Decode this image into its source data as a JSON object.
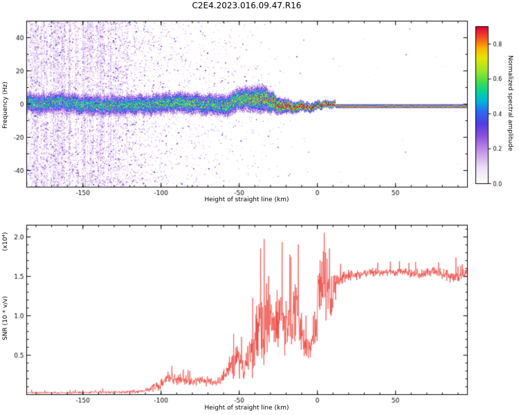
{
  "title": "C2E4.2023.016.09.47.R16",
  "layout_labels": {
    "top_xlabel": "Height of straight line (km)",
    "bottom_xlabel": "Height of straight line (km)",
    "top_ylabel": "Frequency (Hz)",
    "bottom_ylabel": "SNR (10 * v/v)",
    "bottom_y_scale": "(x10⁴)",
    "colorbar_label": "Normalized spectral amplitude"
  },
  "top_panel": {
    "x_range": [
      -186,
      96
    ],
    "y_range": [
      -50,
      50
    ],
    "x_ticks": [
      -150,
      -100,
      -50,
      0,
      50
    ],
    "x_tick_labels": [
      "-150",
      "-100",
      "-50",
      "0",
      "50"
    ],
    "x_minor_step": 10,
    "y_ticks": [
      -40,
      -20,
      0,
      20,
      40
    ],
    "y_tick_labels": [
      "-40",
      "-20",
      "0",
      "20",
      "40"
    ],
    "y_minor_step": 10
  },
  "bottom_panel": {
    "x_range": [
      -186,
      96
    ],
    "y_range": [
      0,
      2.15
    ],
    "x_ticks": [
      -150,
      -100,
      -50,
      0,
      50
    ],
    "x_tick_labels": [
      "-150",
      "-100",
      "-50",
      "0",
      "50"
    ],
    "x_minor_step": 10,
    "y_ticks": [
      0.5,
      1.0,
      1.5,
      2.0
    ],
    "y_tick_labels": [
      "0.5",
      "1.0",
      "1.5",
      "2.0"
    ],
    "y_minor_step": 0.1,
    "line_color": "#ee3b33"
  },
  "colorbar": {
    "range": [
      0,
      0.9
    ],
    "ticks": [
      0,
      0.2,
      0.4,
      0.6,
      0.8
    ],
    "tick_labels": [
      "0.0",
      "0.2",
      "0.4",
      "0.6",
      "0.8"
    ],
    "stops": [
      [
        0.0,
        "#ffffff"
      ],
      [
        0.1,
        "#eddef7"
      ],
      [
        0.2,
        "#c496e8"
      ],
      [
        0.3,
        "#8c50dc"
      ],
      [
        0.38,
        "#503ce6"
      ],
      [
        0.46,
        "#286ef0"
      ],
      [
        0.52,
        "#00b4dc"
      ],
      [
        0.58,
        "#00d2a0"
      ],
      [
        0.64,
        "#3cdc50"
      ],
      [
        0.72,
        "#a0e628"
      ],
      [
        0.8,
        "#e6e600"
      ],
      [
        0.86,
        "#fab400"
      ],
      [
        0.92,
        "#fa5a1e"
      ],
      [
        1.0,
        "#dc003c"
      ]
    ]
  },
  "chart_data": [
    {
      "type": "heatmap",
      "title": "C2E4.2023.016.09.47.R16",
      "xlabel": "Height of straight line (km)",
      "ylabel": "Frequency (Hz)",
      "colorbar_label": "Normalized spectral amplitude",
      "description": "Radio-occultation echo spectrogram: dense lavender speckle noise with vertical streaks below -130 km, a speckled blue/cyan echo band near 0 Hz that wanders slightly, intensifies to yellow/red between -30 and 10 km, and becomes a thin straight multicolour (red-core) line at -1.5 Hz above ~12 km",
      "centerline": {
        "km": [
          -185,
          -175,
          -165,
          -155,
          -145,
          -135,
          -125,
          -115,
          -105,
          -95,
          -85,
          -75,
          -65,
          -55,
          -45,
          -35,
          -25,
          -15,
          -5,
          5,
          15,
          25,
          35,
          45,
          55,
          65,
          75,
          85,
          95
        ],
        "freq_hz": [
          0.5,
          -0.5,
          0.5,
          0,
          -0.5,
          0,
          0.5,
          0,
          -0.5,
          0,
          0.5,
          0,
          -0.5,
          0.5,
          1.5,
          4,
          -1,
          -2,
          -1.5,
          -1.5,
          -1.5,
          -1.5,
          -1.5,
          -1.5,
          -1.5,
          -1.5,
          -1.5,
          -1.5,
          -1.5
        ],
        "peak_amplitude": [
          0.55,
          0.55,
          0.55,
          0.55,
          0.55,
          0.55,
          0.55,
          0.55,
          0.58,
          0.58,
          0.6,
          0.6,
          0.6,
          0.62,
          0.68,
          0.72,
          0.85,
          0.9,
          0.95,
          1,
          1,
          1,
          1,
          1,
          1,
          1,
          1,
          1,
          1
        ],
        "sigma_hz": [
          4,
          4,
          4,
          4,
          4,
          4,
          4,
          4,
          4,
          4,
          4,
          4,
          4,
          4.2,
          4.5,
          5,
          3,
          2,
          1.6,
          1.3,
          1.2,
          1.2,
          1.2,
          1.2,
          1.2,
          1.2,
          1.2,
          1.2,
          1.2
        ]
      },
      "noise_density": [
        [
          -186,
          0.5
        ],
        [
          -150,
          0.48
        ],
        [
          -135,
          0.4
        ],
        [
          -128,
          0.3
        ],
        [
          -120,
          0.17
        ],
        [
          -110,
          0.1
        ],
        [
          -100,
          0.07
        ],
        [
          -90,
          0.05
        ],
        [
          -80,
          0.038
        ],
        [
          -70,
          0.03
        ],
        [
          -60,
          0.024
        ],
        [
          -50,
          0.02
        ],
        [
          -40,
          0.014
        ],
        [
          -30,
          0.008
        ],
        [
          -20,
          0.004
        ],
        [
          -10,
          0.002
        ],
        [
          0,
          0.001
        ],
        [
          96,
          0.0005
        ]
      ],
      "line_start_km": 12,
      "line_freq_hz": -1.5,
      "line_layers": [
        [
          3.4,
          0.13
        ],
        [
          2.4,
          0.35
        ],
        [
          1.6,
          0.55
        ],
        [
          1.0,
          0.75
        ],
        [
          0.5,
          0.95
        ]
      ]
    },
    {
      "type": "line",
      "series_name": "SNR",
      "color": "#ee3b33",
      "xlabel": "Height of straight line (km)",
      "ylabel": "SNR (10 * v/v) x10^4",
      "envelope": [
        [
          -186,
          0.02,
          0.012
        ],
        [
          -160,
          0.02,
          0.012
        ],
        [
          -140,
          0.025,
          0.015
        ],
        [
          -120,
          0.03,
          0.02
        ],
        [
          -110,
          0.04,
          0.025
        ],
        [
          -100,
          0.12,
          0.07
        ],
        [
          -95,
          0.22,
          0.08
        ],
        [
          -90,
          0.2,
          0.07
        ],
        [
          -85,
          0.18,
          0.06
        ],
        [
          -80,
          0.15,
          0.05
        ],
        [
          -75,
          0.18,
          0.06
        ],
        [
          -70,
          0.17,
          0.06
        ],
        [
          -65,
          0.15,
          0.05
        ],
        [
          -60,
          0.22,
          0.1
        ],
        [
          -55,
          0.35,
          0.15
        ],
        [
          -50,
          0.45,
          0.2
        ],
        [
          -47,
          0.3,
          0.12
        ],
        [
          -44,
          0.5,
          0.25
        ],
        [
          -40,
          0.55,
          0.3
        ],
        [
          -37,
          0.95,
          0.45
        ],
        [
          -34,
          0.8,
          0.4
        ],
        [
          -31,
          1.05,
          0.45
        ],
        [
          -28,
          0.9,
          0.4
        ],
        [
          -25,
          1.0,
          0.42
        ],
        [
          -22,
          1.05,
          0.4
        ],
        [
          -19,
          0.8,
          0.35
        ],
        [
          -16,
          0.9,
          0.4
        ],
        [
          -13,
          1.15,
          0.45
        ],
        [
          -10,
          0.8,
          0.3
        ],
        [
          -7,
          0.55,
          0.15
        ],
        [
          -4,
          0.6,
          0.2
        ],
        [
          -1,
          0.9,
          0.4
        ],
        [
          2,
          1.25,
          0.5
        ],
        [
          5,
          1.45,
          0.45
        ],
        [
          8,
          1.2,
          0.4
        ],
        [
          11,
          1.35,
          0.2
        ],
        [
          14,
          1.45,
          0.12
        ],
        [
          18,
          1.5,
          0.08
        ],
        [
          25,
          1.52,
          0.06
        ],
        [
          35,
          1.55,
          0.05
        ],
        [
          45,
          1.55,
          0.05
        ],
        [
          55,
          1.55,
          0.05
        ],
        [
          65,
          1.52,
          0.06
        ],
        [
          75,
          1.55,
          0.06
        ],
        [
          85,
          1.5,
          0.08
        ],
        [
          92,
          1.5,
          0.08
        ],
        [
          96,
          1.55,
          0.05
        ]
      ],
      "spikes": [
        [
          -36,
          1.85
        ],
        [
          -31,
          1.5
        ],
        [
          -12,
          1.9
        ],
        [
          2,
          1.7
        ],
        [
          4.5,
          2.05
        ],
        [
          8,
          1.85
        ]
      ]
    }
  ]
}
